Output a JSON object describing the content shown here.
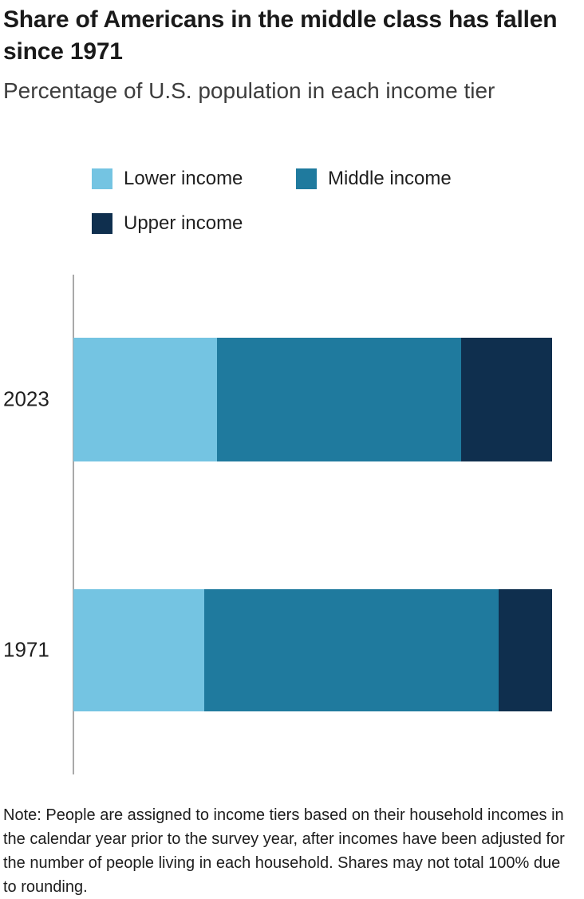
{
  "header": {
    "title": "Share of Americans in the middle class has fallen since 1971",
    "subtitle": "Percentage of U.S. population in each income tier"
  },
  "legend": [
    {
      "label": "Lower income",
      "color": "#74c4e2"
    },
    {
      "label": "Middle income",
      "color": "#1f7a9e"
    },
    {
      "label": "Upper income",
      "color": "#0f2f4e"
    }
  ],
  "chart_data": {
    "type": "bar",
    "orientation": "horizontal",
    "stacked": true,
    "title": "Share of Americans in the middle class has fallen since 1971",
    "subtitle": "Percentage of U.S. population in each income tier",
    "categories": [
      "2023",
      "1971"
    ],
    "series": [
      {
        "name": "Lower income",
        "color": "#74c4e2",
        "values": [
          30,
          27
        ]
      },
      {
        "name": "Middle income",
        "color": "#1f7a9e",
        "values": [
          51,
          61
        ]
      },
      {
        "name": "Upper income",
        "color": "#0f2f4e",
        "values": [
          19,
          11
        ]
      }
    ],
    "xlim": [
      0,
      100
    ],
    "unit": "percent",
    "grid": false,
    "legend_position": "top-left",
    "axis_style": "single vertical baseline at left, no ticks or value labels"
  },
  "note": "Note: People are assigned to income tiers based on their household incomes in the calendar year prior to the survey year, after incomes have been adjusted for the number of people living in each household. Shares may not total 100% due to rounding."
}
